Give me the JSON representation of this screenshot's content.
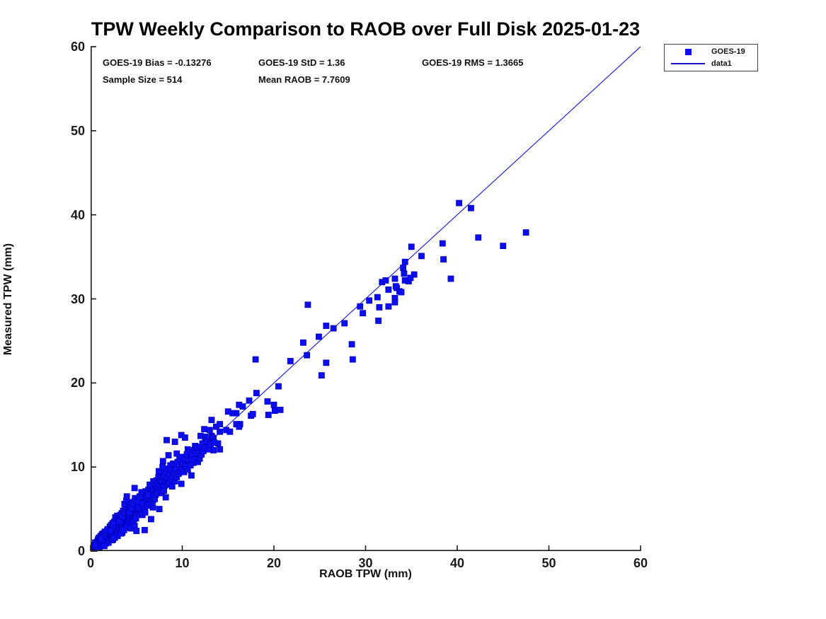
{
  "chart_data": {
    "type": "scatter",
    "title": "TPW Weekly Comparison to RAOB over Full Disk 2025-01-23",
    "xlabel": "RAOB TPW (mm)",
    "ylabel": "Measured TPW (mm)",
    "xlim": [
      0,
      60
    ],
    "ylim": [
      0,
      60
    ],
    "xticks": [
      0,
      10,
      20,
      30,
      40,
      50,
      60
    ],
    "yticks": [
      0,
      10,
      20,
      30,
      40,
      50,
      60
    ],
    "grid": false,
    "legend_position": "outside-top-right",
    "stats": {
      "bias": "GOES-19 Bias = -0.13276",
      "std": "GOES-19 StD = 1.36",
      "rms": "GOES-19 RMS = 1.3665",
      "sample": "Sample Size = 514",
      "mean_raob": "Mean RAOB = 7.7609"
    },
    "legend": [
      {
        "label": "GOES-19",
        "symbol": "square"
      },
      {
        "label": "data1",
        "symbol": "line"
      }
    ],
    "colors": {
      "marker_fill": "#0d0df2",
      "marker_edge": "#0000b8",
      "fit_line": "#3232cd",
      "axis": "#1c1c1c"
    },
    "fit_line": {
      "x1": 0,
      "y1": 0,
      "x2": 60,
      "y2": 60
    },
    "series_name": "GOES-19",
    "points": [
      [
        13.2,
        15.6
      ],
      [
        13.7,
        14.8
      ],
      [
        12.4,
        14.5
      ],
      [
        13.0,
        14.4
      ],
      [
        14.8,
        14.4
      ],
      [
        15.2,
        14.2
      ],
      [
        12.0,
        13.7
      ],
      [
        12.5,
        13.6
      ],
      [
        13.2,
        13.7
      ],
      [
        13.4,
        13.4
      ],
      [
        13.9,
        12.8
      ],
      [
        14.1,
        15.1
      ],
      [
        15.9,
        16.4
      ],
      [
        15.5,
        16.4
      ],
      [
        16.2,
        17.4
      ],
      [
        16.6,
        17.2
      ],
      [
        15.9,
        15.1
      ],
      [
        16.3,
        15.1
      ],
      [
        16.2,
        14.8
      ],
      [
        17.3,
        17.9
      ],
      [
        17.5,
        16.1
      ],
      [
        17.7,
        16.3
      ],
      [
        19.4,
        16.2
      ],
      [
        19.3,
        17.8
      ],
      [
        20.0,
        17.4
      ],
      [
        20.7,
        16.8
      ],
      [
        20.1,
        16.7
      ],
      [
        18.1,
        18.8
      ],
      [
        20.5,
        19.6
      ],
      [
        18.0,
        22.8
      ],
      [
        21.8,
        22.6
      ],
      [
        23.6,
        23.3
      ],
      [
        23.2,
        24.8
      ],
      [
        23.7,
        29.3
      ],
      [
        24.9,
        25.5
      ],
      [
        25.7,
        26.8
      ],
      [
        26.5,
        26.5
      ],
      [
        25.2,
        20.9
      ],
      [
        25.7,
        22.4
      ],
      [
        27.7,
        27.1
      ],
      [
        28.5,
        24.6
      ],
      [
        28.6,
        22.8
      ],
      [
        29.4,
        29.1
      ],
      [
        29.7,
        28.3
      ],
      [
        30.4,
        29.8
      ],
      [
        31.3,
        30.2
      ],
      [
        31.5,
        29.0
      ],
      [
        32.5,
        29.1
      ],
      [
        31.8,
        32.0
      ],
      [
        32.2,
        32.2
      ],
      [
        33.2,
        32.4
      ],
      [
        33.4,
        31.3
      ],
      [
        33.7,
        30.9
      ],
      [
        33.2,
        30.1
      ],
      [
        33.2,
        29.6
      ],
      [
        31.4,
        27.4
      ],
      [
        32.5,
        31.1
      ],
      [
        33.3,
        31.5
      ],
      [
        33.9,
        30.8
      ],
      [
        34.2,
        33.0
      ],
      [
        35.3,
        32.9
      ],
      [
        34.3,
        32.2
      ],
      [
        34.7,
        32.1
      ],
      [
        34.9,
        32.5
      ],
      [
        34.3,
        34.4
      ],
      [
        34.1,
        33.7
      ],
      [
        35.0,
        36.2
      ],
      [
        36.1,
        35.1
      ],
      [
        38.4,
        36.6
      ],
      [
        38.5,
        34.7
      ],
      [
        39.3,
        32.4
      ],
      [
        40.2,
        41.4
      ],
      [
        41.5,
        40.8
      ],
      [
        42.3,
        37.3
      ],
      [
        45.0,
        36.3
      ],
      [
        47.5,
        37.9
      ],
      [
        15.0,
        16.6
      ],
      [
        14.1,
        14.2
      ],
      [
        13.4,
        12.0
      ],
      [
        14.1,
        12.1
      ],
      [
        8.3,
        13.2
      ],
      [
        9.2,
        13.0
      ],
      [
        9.9,
        13.8
      ],
      [
        10.3,
        13.5
      ],
      [
        8.5,
        11.4
      ],
      [
        9.4,
        11.6
      ],
      [
        7.9,
        10.7
      ],
      [
        10.6,
        12.1
      ],
      [
        11.4,
        12.5
      ],
      [
        12.5,
        13.2
      ],
      [
        0.3,
        0.4
      ],
      [
        0.4,
        0.3
      ],
      [
        0.45,
        0.6
      ],
      [
        0.5,
        0.5
      ],
      [
        0.55,
        0.8
      ],
      [
        0.6,
        0.4
      ],
      [
        0.6,
        1.0
      ],
      [
        0.65,
        0.7
      ],
      [
        0.7,
        0.5
      ],
      [
        0.7,
        1.1
      ],
      [
        0.75,
        0.9
      ],
      [
        0.8,
        0.6
      ],
      [
        0.8,
        1.3
      ],
      [
        0.85,
        1.0
      ],
      [
        0.9,
        0.7
      ],
      [
        0.9,
        1.2
      ],
      [
        0.95,
        0.5
      ],
      [
        1.0,
        0.9
      ],
      [
        1.0,
        1.4
      ],
      [
        0.35,
        0.7
      ],
      [
        0.5,
        1.0
      ],
      [
        0.75,
        0.4
      ],
      [
        0.85,
        1.5
      ],
      [
        0.95,
        1.6
      ],
      [
        0.6,
        0.7
      ],
      [
        1.05,
        0.8
      ],
      [
        1.1,
        1.2
      ],
      [
        1.1,
        1.8
      ],
      [
        1.15,
        0.6
      ],
      [
        1.2,
        1.0
      ],
      [
        1.2,
        1.5
      ],
      [
        1.25,
        2.0
      ],
      [
        1.3,
        0.9
      ],
      [
        1.3,
        1.3
      ],
      [
        1.35,
        1.7
      ],
      [
        1.4,
        1.1
      ],
      [
        1.4,
        2.1
      ],
      [
        1.45,
        0.8
      ],
      [
        1.5,
        1.4
      ],
      [
        1.5,
        1.9
      ],
      [
        1.55,
        1.2
      ],
      [
        1.6,
        1.0
      ],
      [
        1.6,
        2.2
      ],
      [
        1.65,
        1.6
      ],
      [
        1.7,
        1.3
      ],
      [
        1.7,
        2.0
      ],
      [
        1.75,
        1.1
      ],
      [
        1.8,
        1.8
      ],
      [
        1.8,
        2.4
      ],
      [
        1.85,
        1.5
      ],
      [
        1.9,
        1.2
      ],
      [
        1.9,
        2.1
      ],
      [
        1.95,
        1.7
      ],
      [
        2.0,
        1.4
      ],
      [
        2.0,
        2.5
      ],
      [
        1.25,
        1.4
      ],
      [
        1.45,
        1.8
      ],
      [
        1.55,
        2.3
      ],
      [
        1.65,
        0.9
      ],
      [
        1.75,
        2.2
      ],
      [
        1.85,
        2.6
      ],
      [
        1.95,
        1.0
      ],
      [
        1.35,
        0.7
      ],
      [
        1.15,
        1.4
      ],
      [
        1.5,
        0.6
      ],
      [
        2.05,
        1.8
      ],
      [
        2.1,
        2.2
      ],
      [
        2.1,
        2.9
      ],
      [
        2.15,
        1.5
      ],
      [
        2.2,
        2.0
      ],
      [
        2.2,
        2.6
      ],
      [
        2.25,
        3.1
      ],
      [
        2.3,
        1.7
      ],
      [
        2.3,
        2.3
      ],
      [
        2.35,
        2.8
      ],
      [
        2.4,
        1.9
      ],
      [
        2.4,
        3.3
      ],
      [
        2.45,
        1.4
      ],
      [
        2.5,
        2.4
      ],
      [
        2.5,
        3.0
      ],
      [
        2.55,
        2.1
      ],
      [
        2.6,
        1.7
      ],
      [
        2.6,
        3.5
      ],
      [
        2.65,
        2.7
      ],
      [
        2.7,
        2.2
      ],
      [
        2.7,
        3.2
      ],
      [
        2.75,
        1.9
      ],
      [
        2.8,
        2.9
      ],
      [
        2.8,
        3.6
      ],
      [
        2.85,
        2.5
      ],
      [
        2.9,
        2.0
      ],
      [
        2.9,
        3.3
      ],
      [
        2.95,
        2.7
      ],
      [
        3.0,
        2.3
      ],
      [
        3.0,
        3.8
      ],
      [
        2.25,
        2.5
      ],
      [
        2.45,
        2.9
      ],
      [
        2.55,
        3.4
      ],
      [
        2.65,
        1.6
      ],
      [
        2.75,
        3.3
      ],
      [
        2.85,
        3.9
      ],
      [
        2.95,
        1.8
      ],
      [
        2.35,
        1.3
      ],
      [
        2.15,
        2.4
      ],
      [
        2.5,
        1.6
      ],
      [
        2.7,
        4.0
      ],
      [
        2.9,
        4.2
      ],
      [
        3.05,
        2.8
      ],
      [
        3.1,
        3.2
      ],
      [
        3.1,
        4.0
      ],
      [
        3.15,
        2.4
      ],
      [
        3.2,
        3.0
      ],
      [
        3.2,
        3.7
      ],
      [
        3.25,
        4.3
      ],
      [
        3.3,
        2.6
      ],
      [
        3.3,
        3.4
      ],
      [
        3.35,
        3.9
      ],
      [
        3.4,
        2.9
      ],
      [
        3.4,
        4.5
      ],
      [
        3.45,
        2.2
      ],
      [
        3.5,
        3.5
      ],
      [
        3.5,
        4.1
      ],
      [
        3.55,
        3.1
      ],
      [
        3.6,
        2.7
      ],
      [
        3.6,
        4.7
      ],
      [
        3.65,
        3.8
      ],
      [
        3.7,
        3.2
      ],
      [
        3.7,
        4.4
      ],
      [
        3.75,
        2.8
      ],
      [
        3.8,
        4.0
      ],
      [
        3.8,
        4.9
      ],
      [
        3.85,
        3.6
      ],
      [
        3.9,
        3.0
      ],
      [
        3.9,
        4.5
      ],
      [
        3.95,
        3.8
      ],
      [
        4.0,
        3.3
      ],
      [
        4.0,
        5.1
      ],
      [
        3.25,
        3.6
      ],
      [
        3.45,
        4.1
      ],
      [
        3.55,
        4.8
      ],
      [
        3.65,
        2.5
      ],
      [
        3.75,
        4.6
      ],
      [
        3.85,
        5.3
      ],
      [
        3.95,
        2.9
      ],
      [
        3.35,
        2.1
      ],
      [
        3.15,
        3.5
      ],
      [
        3.5,
        2.5
      ],
      [
        3.7,
        5.6
      ],
      [
        3.9,
        6.0
      ],
      [
        3.95,
        6.5
      ],
      [
        4.05,
        3.7
      ],
      [
        4.1,
        4.2
      ],
      [
        4.1,
        5.0
      ],
      [
        4.15,
        3.4
      ],
      [
        4.2,
        4.0
      ],
      [
        4.2,
        4.7
      ],
      [
        4.25,
        5.3
      ],
      [
        4.3,
        3.6
      ],
      [
        4.3,
        4.4
      ],
      [
        4.35,
        4.9
      ],
      [
        4.4,
        3.9
      ],
      [
        4.4,
        5.5
      ],
      [
        4.45,
        3.2
      ],
      [
        4.5,
        4.5
      ],
      [
        4.5,
        5.1
      ],
      [
        4.55,
        4.1
      ],
      [
        4.6,
        3.7
      ],
      [
        4.6,
        5.7
      ],
      [
        4.65,
        4.8
      ],
      [
        4.7,
        4.2
      ],
      [
        4.7,
        5.4
      ],
      [
        4.75,
        3.8
      ],
      [
        4.8,
        5.0
      ],
      [
        4.8,
        5.9
      ],
      [
        4.85,
        4.6
      ],
      [
        4.9,
        4.0
      ],
      [
        4.9,
        5.5
      ],
      [
        4.95,
        4.8
      ],
      [
        5.0,
        4.3
      ],
      [
        5.0,
        6.1
      ],
      [
        4.25,
        4.6
      ],
      [
        4.45,
        5.1
      ],
      [
        4.55,
        5.8
      ],
      [
        4.65,
        3.5
      ],
      [
        4.75,
        5.6
      ],
      [
        4.85,
        6.3
      ],
      [
        4.95,
        3.9
      ],
      [
        4.8,
        7.5
      ],
      [
        4.4,
        2.7
      ],
      [
        4.8,
        3.0
      ],
      [
        5.1,
        4.6
      ],
      [
        5.1,
        5.4
      ],
      [
        5.2,
        4.9
      ],
      [
        5.2,
        6.0
      ],
      [
        5.3,
        4.4
      ],
      [
        5.3,
        5.6
      ],
      [
        5.4,
        5.0
      ],
      [
        5.4,
        6.3
      ],
      [
        5.5,
        4.7
      ],
      [
        5.5,
        5.8
      ],
      [
        5.6,
        5.2
      ],
      [
        5.6,
        6.6
      ],
      [
        5.7,
        4.9
      ],
      [
        5.7,
        6.1
      ],
      [
        5.8,
        5.4
      ],
      [
        5.8,
        6.9
      ],
      [
        5.9,
        5.1
      ],
      [
        5.9,
        5.9
      ],
      [
        6.0,
        5.6
      ],
      [
        6.0,
        7.1
      ],
      [
        5.25,
        5.2
      ],
      [
        5.45,
        5.9
      ],
      [
        5.65,
        4.3
      ],
      [
        5.85,
        6.4
      ],
      [
        5.95,
        4.6
      ],
      [
        5.15,
        5.9
      ],
      [
        5.35,
        6.5
      ],
      [
        5.55,
        7.0
      ],
      [
        5.75,
        5.6
      ],
      [
        5.9,
        2.5
      ],
      [
        5.0,
        2.4
      ],
      [
        6.1,
        5.8
      ],
      [
        6.1,
        6.6
      ],
      [
        6.2,
        5.4
      ],
      [
        6.2,
        7.0
      ],
      [
        6.3,
        6.1
      ],
      [
        6.3,
        7.3
      ],
      [
        6.4,
        5.7
      ],
      [
        6.4,
        6.8
      ],
      [
        6.5,
        6.2
      ],
      [
        6.5,
        7.6
      ],
      [
        6.6,
        5.9
      ],
      [
        6.6,
        7.1
      ],
      [
        6.7,
        6.4
      ],
      [
        6.7,
        7.8
      ],
      [
        6.8,
        6.0
      ],
      [
        6.8,
        7.4
      ],
      [
        6.9,
        6.6
      ],
      [
        6.9,
        8.1
      ],
      [
        7.0,
        6.2
      ],
      [
        7.0,
        7.7
      ],
      [
        6.25,
        6.7
      ],
      [
        6.45,
        7.9
      ],
      [
        6.65,
        5.5
      ],
      [
        6.85,
        8.3
      ],
      [
        6.6,
        3.8
      ],
      [
        6.8,
        5.2
      ],
      [
        7.1,
        6.7
      ],
      [
        7.1,
        7.9
      ],
      [
        7.2,
        7.2
      ],
      [
        7.2,
        8.4
      ],
      [
        7.3,
        6.9
      ],
      [
        7.3,
        7.6
      ],
      [
        7.4,
        8.0
      ],
      [
        7.4,
        8.8
      ],
      [
        7.5,
        7.1
      ],
      [
        7.5,
        5.0
      ],
      [
        7.6,
        7.7
      ],
      [
        7.6,
        8.5
      ],
      [
        7.7,
        7.3
      ],
      [
        7.7,
        9.0
      ],
      [
        7.8,
        6.9
      ],
      [
        7.8,
        8.2
      ],
      [
        7.9,
        7.6
      ],
      [
        7.9,
        8.8
      ],
      [
        8.0,
        7.2
      ],
      [
        8.0,
        9.3
      ],
      [
        7.45,
        9.5
      ],
      [
        7.85,
        10.0
      ],
      [
        8.1,
        7.8
      ],
      [
        8.1,
        8.9
      ],
      [
        8.2,
        8.3
      ],
      [
        8.3,
        9.4
      ],
      [
        8.4,
        7.9
      ],
      [
        8.4,
        8.7
      ],
      [
        8.5,
        9.8
      ],
      [
        8.6,
        8.1
      ],
      [
        8.6,
        9.1
      ],
      [
        8.7,
        10.2
      ],
      [
        8.8,
        8.5
      ],
      [
        8.8,
        9.6
      ],
      [
        8.9,
        7.7
      ],
      [
        9.0,
        8.9
      ],
      [
        9.0,
        10.4
      ],
      [
        8.2,
        6.4
      ],
      [
        9.1,
        9.3
      ],
      [
        9.2,
        8.3
      ],
      [
        9.2,
        10.1
      ],
      [
        9.3,
        9.7
      ],
      [
        9.4,
        8.8
      ],
      [
        9.5,
        10.6
      ],
      [
        9.6,
        9.2
      ],
      [
        9.7,
        10.9
      ],
      [
        9.8,
        9.5
      ],
      [
        9.9,
        8.0
      ],
      [
        9.9,
        10.3
      ],
      [
        10.0,
        9.8
      ],
      [
        10.0,
        11.2
      ],
      [
        10.1,
        10.4
      ],
      [
        10.2,
        9.4
      ],
      [
        10.3,
        11.0
      ],
      [
        10.4,
        10.1
      ],
      [
        10.5,
        11.5
      ],
      [
        10.6,
        9.7
      ],
      [
        10.7,
        10.8
      ],
      [
        10.8,
        11.8
      ],
      [
        10.9,
        10.2
      ],
      [
        11.0,
        10.9
      ],
      [
        11.0,
        9.0
      ],
      [
        11.1,
        11.5
      ],
      [
        11.2,
        10.5
      ],
      [
        11.3,
        12.0
      ],
      [
        11.4,
        10.9
      ],
      [
        11.5,
        11.6
      ],
      [
        11.6,
        12.3
      ],
      [
        11.7,
        10.6
      ],
      [
        11.8,
        11.9
      ],
      [
        11.9,
        11.0
      ],
      [
        12.0,
        12.4
      ],
      [
        12.1,
        11.5
      ],
      [
        12.2,
        12.8
      ],
      [
        12.3,
        11.9
      ],
      [
        12.5,
        12.3
      ],
      [
        12.7,
        13.0
      ],
      [
        12.9,
        12.1
      ],
      [
        13.1,
        12.7
      ],
      [
        13.3,
        13.5
      ],
      [
        13.5,
        12.9
      ]
    ]
  }
}
